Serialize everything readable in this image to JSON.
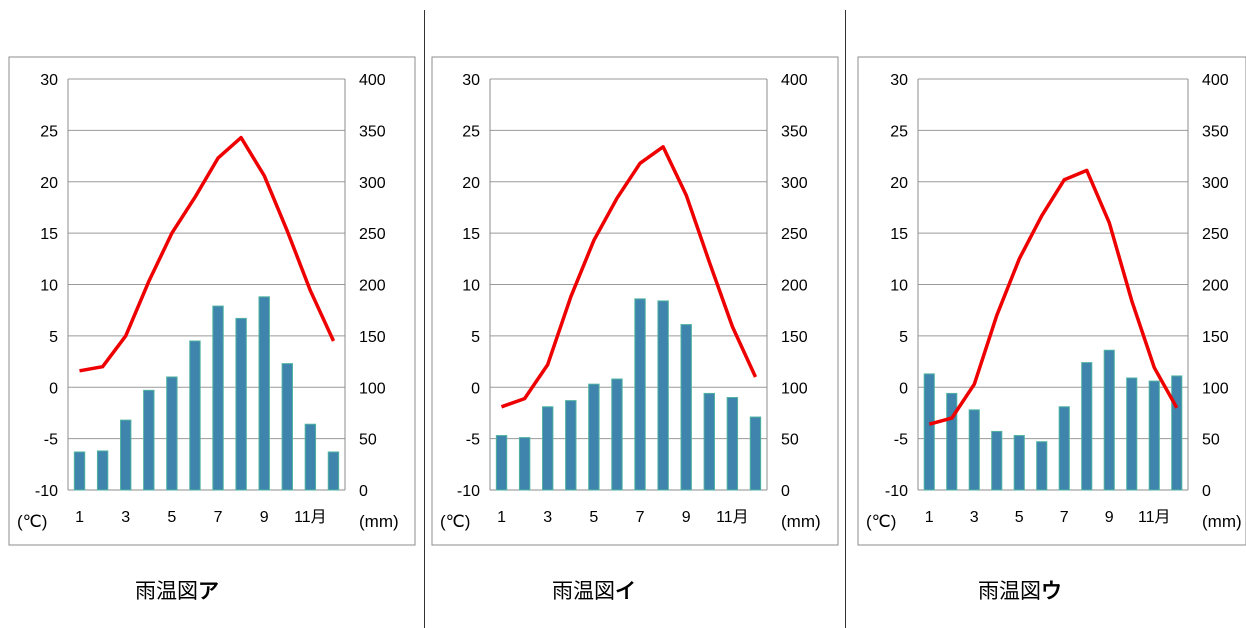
{
  "chart_data": [
    {
      "type": "bar+line",
      "caption_prefix": "雨温図",
      "caption_letter": "ア",
      "x": [
        1,
        2,
        3,
        4,
        5,
        6,
        7,
        8,
        9,
        10,
        11,
        12
      ],
      "x_tick_labels": [
        "1",
        "3",
        "5",
        "7",
        "9",
        "11月"
      ],
      "temp_unit": "(℃)",
      "precip_unit": "(mm)",
      "temperature": [
        1.6,
        2.0,
        5.0,
        10.3,
        15.0,
        18.5,
        22.3,
        24.3,
        20.6,
        15.2,
        9.4,
        4.5
      ],
      "precipitation": [
        37,
        38,
        68,
        97,
        110,
        145,
        179,
        167,
        188,
        123,
        64,
        37
      ],
      "ylim_temp": [
        -10,
        30
      ],
      "ylim_precip": [
        0,
        400
      ],
      "y_temp_ticks": [
        "-10",
        "-5",
        "0",
        "5",
        "10",
        "15",
        "20",
        "25",
        "30"
      ],
      "y_precip_ticks": [
        "0",
        "50",
        "100",
        "150",
        "200",
        "250",
        "300",
        "350",
        "400"
      ],
      "colors": {
        "line": "#ee0000",
        "bar": "#3e84ad",
        "bar_edge": "#4fb3a0",
        "grid": "#9a9a9a"
      }
    },
    {
      "type": "bar+line",
      "caption_prefix": "雨温図",
      "caption_letter": "イ",
      "x": [
        1,
        2,
        3,
        4,
        5,
        6,
        7,
        8,
        9,
        10,
        11,
        12
      ],
      "x_tick_labels": [
        "1",
        "3",
        "5",
        "7",
        "9",
        "11月"
      ],
      "temp_unit": "(℃)",
      "precip_unit": "(mm)",
      "temperature": [
        -1.9,
        -1.1,
        2.2,
        8.8,
        14.3,
        18.4,
        21.8,
        23.4,
        18.7,
        12.2,
        5.9,
        1.0
      ],
      "precipitation": [
        53,
        51,
        81,
        87,
        103,
        108,
        186,
        184,
        161,
        94,
        90,
        71
      ],
      "ylim_temp": [
        -10,
        30
      ],
      "ylim_precip": [
        0,
        400
      ],
      "y_temp_ticks": [
        "-10",
        "-5",
        "0",
        "5",
        "10",
        "15",
        "20",
        "25",
        "30"
      ],
      "y_precip_ticks": [
        "0",
        "50",
        "100",
        "150",
        "200",
        "250",
        "300",
        "350",
        "400"
      ],
      "colors": {
        "line": "#ee0000",
        "bar": "#3e84ad",
        "bar_edge": "#4fb3a0",
        "grid": "#9a9a9a"
      }
    },
    {
      "type": "bar+line",
      "caption_prefix": "雨温図",
      "caption_letter": "ウ",
      "x": [
        1,
        2,
        3,
        4,
        5,
        6,
        7,
        8,
        9,
        10,
        11,
        12
      ],
      "x_tick_labels": [
        "1",
        "3",
        "5",
        "7",
        "9",
        "11月"
      ],
      "temp_unit": "(℃)",
      "precip_unit": "(mm)",
      "temperature": [
        -3.6,
        -3.0,
        0.3,
        7.0,
        12.5,
        16.7,
        20.2,
        21.1,
        16.0,
        8.4,
        1.9,
        -2.0
      ],
      "precipitation": [
        113,
        94,
        78,
        57,
        53,
        47,
        81,
        124,
        136,
        109,
        106,
        111
      ],
      "ylim_temp": [
        -10,
        30
      ],
      "ylim_precip": [
        0,
        400
      ],
      "y_temp_ticks": [
        "-10",
        "-5",
        "0",
        "5",
        "10",
        "15",
        "20",
        "25",
        "30"
      ],
      "y_precip_ticks": [
        "0",
        "50",
        "100",
        "150",
        "200",
        "250",
        "300",
        "350",
        "400"
      ],
      "colors": {
        "line": "#ee0000",
        "bar": "#3e84ad",
        "bar_edge": "#4fb3a0",
        "grid": "#9a9a9a"
      }
    }
  ]
}
